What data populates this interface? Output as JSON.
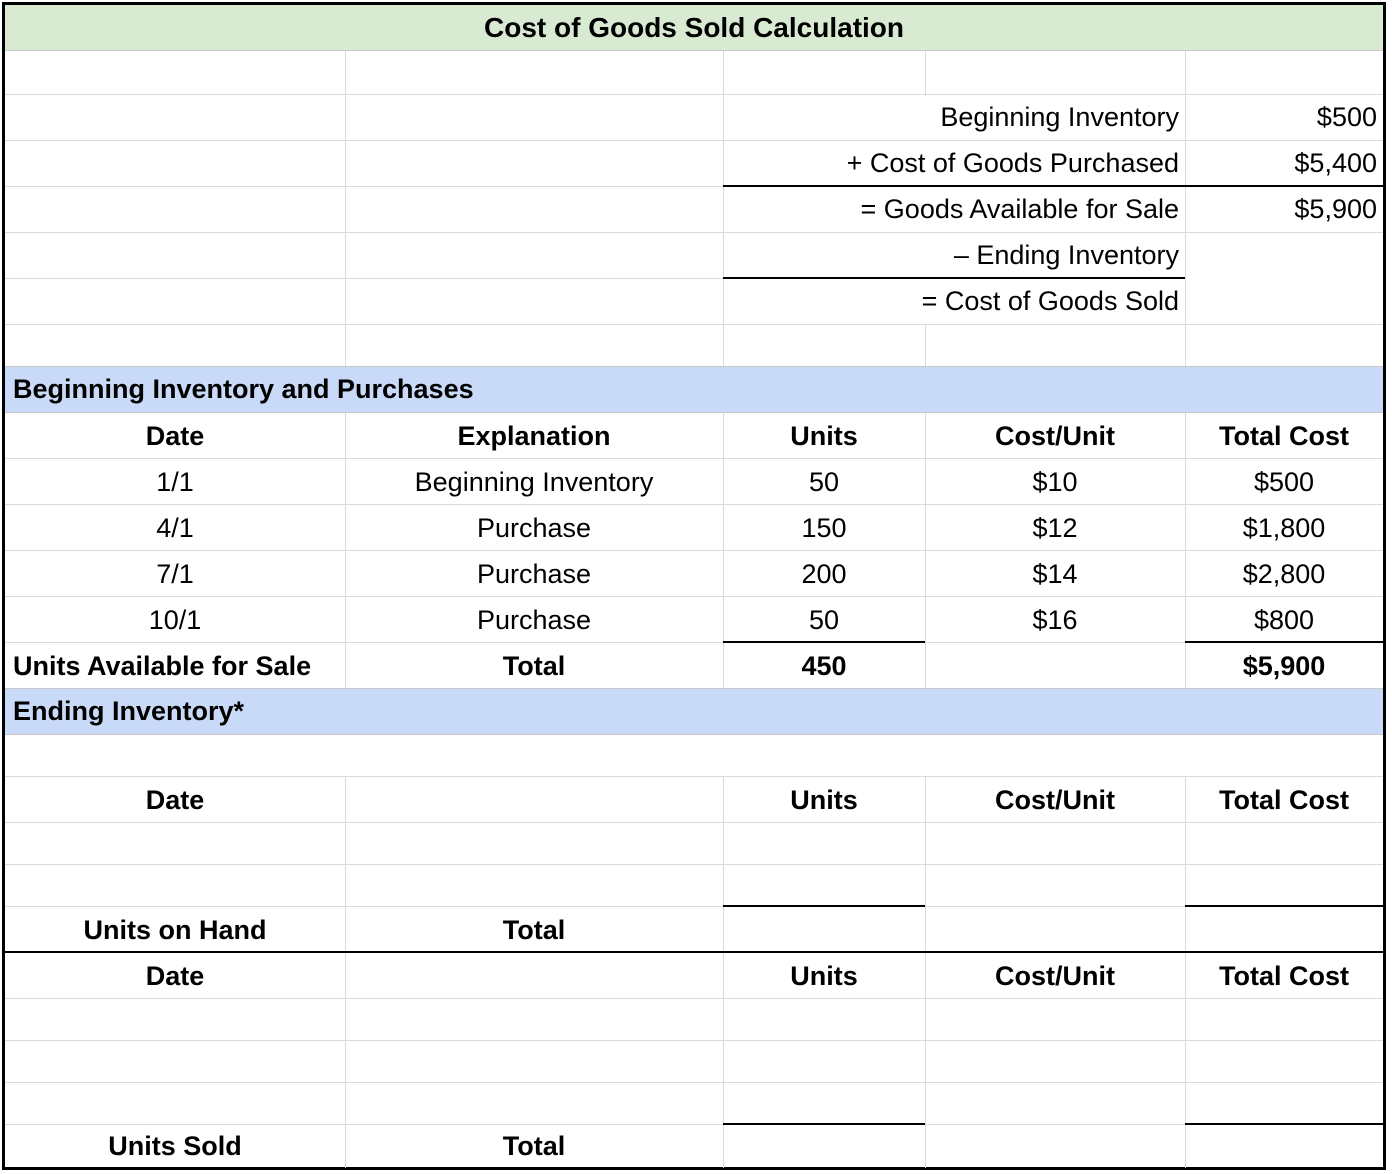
{
  "title": "Cost of Goods Sold Calculation",
  "summary": {
    "rows": [
      {
        "label": "Beginning Inventory",
        "value": "$500"
      },
      {
        "label": "+ Cost of Goods Purchased",
        "value": "$5,400"
      },
      {
        "label": "= Goods Available for Sale",
        "value": "$5,900"
      },
      {
        "label": "– Ending Inventory",
        "value": ""
      },
      {
        "label": "= Cost of Goods Sold",
        "value": ""
      }
    ]
  },
  "purchases": {
    "section_title": "Beginning Inventory and Purchases",
    "headers": {
      "date": "Date",
      "explanation": "Explanation",
      "units": "Units",
      "cost_unit": "Cost/Unit",
      "total_cost": "Total Cost"
    },
    "rows": [
      {
        "date": "1/1",
        "explanation": "Beginning Inventory",
        "units": "50",
        "cost_unit": "$10",
        "total_cost": "$500"
      },
      {
        "date": "4/1",
        "explanation": "Purchase",
        "units": "150",
        "cost_unit": "$12",
        "total_cost": "$1,800"
      },
      {
        "date": "7/1",
        "explanation": "Purchase",
        "units": "200",
        "cost_unit": "$14",
        "total_cost": "$2,800"
      },
      {
        "date": "10/1",
        "explanation": "Purchase",
        "units": "50",
        "cost_unit": "$16",
        "total_cost": "$800"
      }
    ],
    "total_row": {
      "label": "Units Available for Sale",
      "total_label": "Total",
      "units": "450",
      "total_cost": "$5,900"
    }
  },
  "ending": {
    "section_title": "Ending Inventory*",
    "block1": {
      "headers": {
        "date": "Date",
        "units": "Units",
        "cost_unit": "Cost/Unit",
        "total_cost": "Total Cost"
      },
      "total_row": {
        "label": "Units on Hand",
        "total_label": "Total"
      }
    },
    "block2": {
      "headers": {
        "date": "Date",
        "units": "Units",
        "cost_unit": "Cost/Unit",
        "total_cost": "Total Cost"
      },
      "total_row": {
        "label": "Units Sold",
        "total_label": "Total"
      }
    }
  }
}
